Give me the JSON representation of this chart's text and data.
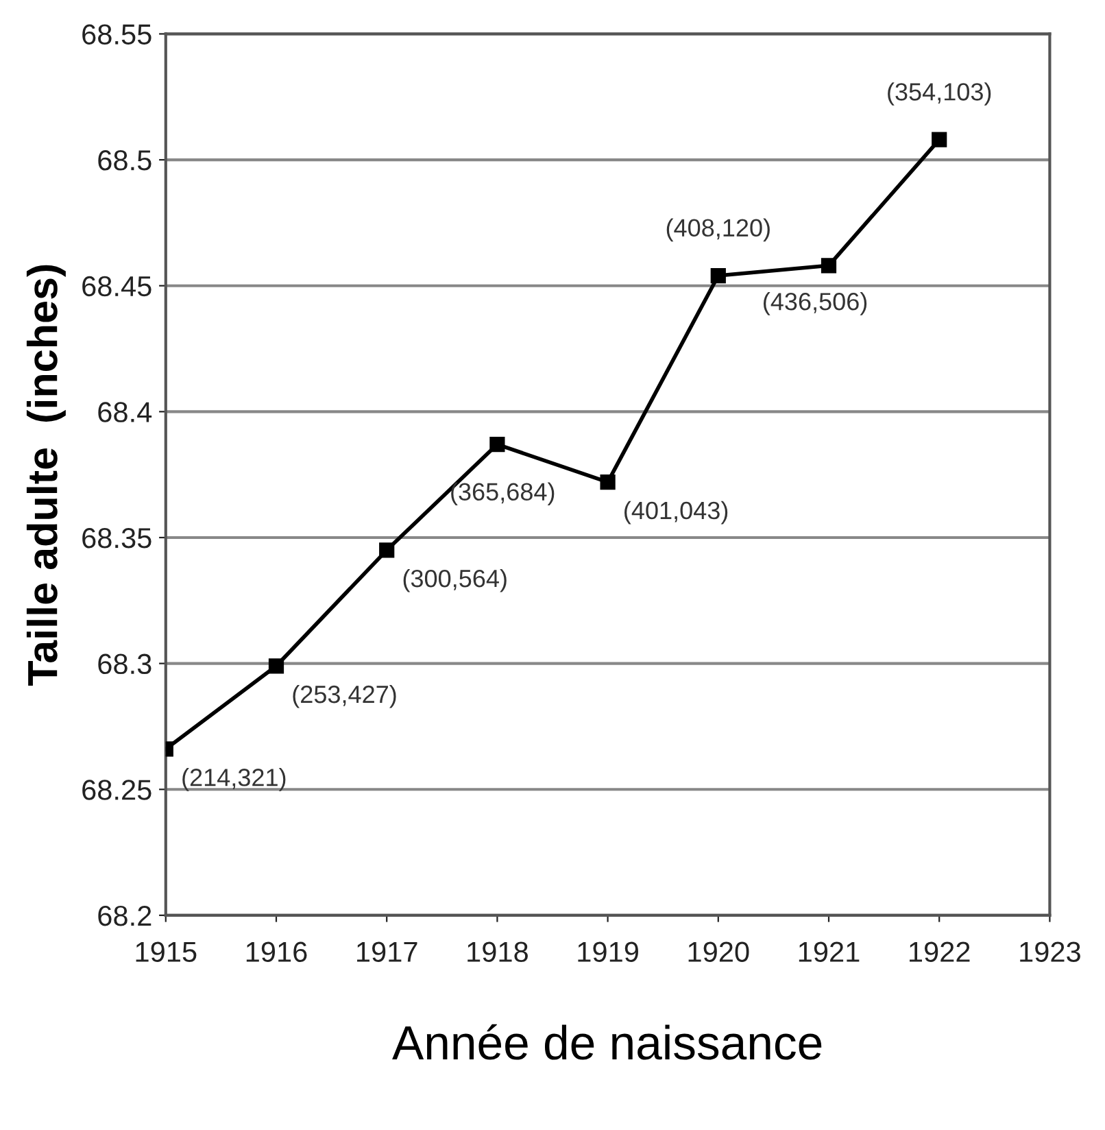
{
  "chart_data": {
    "type": "line",
    "x": [
      1915,
      1916,
      1917,
      1918,
      1919,
      1920,
      1921,
      1922
    ],
    "series": [
      {
        "color": "#000000",
        "values": [
          68.266,
          68.299,
          68.345,
          68.387,
          68.372,
          68.454,
          68.458,
          68.508
        ]
      }
    ],
    "xlabel": "Année de naissance",
    "ylabel": "Taille adulte  (inches)",
    "xlim": [
      1915,
      1923
    ],
    "xticks": [
      1915,
      1916,
      1917,
      1918,
      1919,
      1920,
      1921,
      1922,
      1923
    ],
    "ylim": [
      68.2,
      68.55
    ],
    "yticks": [
      68.2,
      68.25,
      68.3,
      68.35,
      68.4,
      68.45,
      68.5,
      68.55
    ],
    "grid": "y",
    "marker": "square",
    "line_style": "solid",
    "annotations": [
      {
        "text": "(214,321)",
        "x": 1915,
        "y": 68.266
      },
      {
        "text": "(253,427)",
        "x": 1916,
        "y": 68.299
      },
      {
        "text": "(300,564)",
        "x": 1917,
        "y": 68.345
      },
      {
        "text": "(365,684)",
        "x": 1918,
        "y": 68.387
      },
      {
        "text": "(401,043)",
        "x": 1919,
        "y": 68.372
      },
      {
        "text": "(408,120)",
        "x": 1920,
        "y": 68.454
      },
      {
        "text": "(436,506)",
        "x": 1921,
        "y": 68.458
      },
      {
        "text": "(354,103)",
        "x": 1922,
        "y": 68.508
      }
    ]
  }
}
